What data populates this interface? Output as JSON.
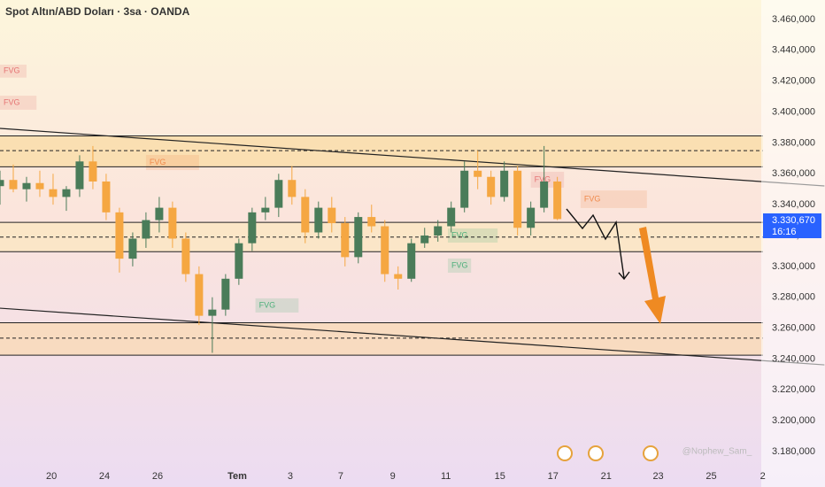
{
  "chart_data": {
    "type": "candlestick",
    "title": "Spot Altın/ABD Doları · 3sa · OANDA",
    "watermark": "@Nophew_Sam_",
    "last_price_label": "3.330,670",
    "countdown": "16:16",
    "x": [
      0,
      4,
      8,
      12,
      16,
      20,
      24,
      28,
      32,
      36,
      40,
      44,
      48,
      52,
      56,
      60,
      64,
      68,
      72,
      76,
      80,
      84,
      88,
      92,
      96,
      100,
      104,
      108,
      112,
      116,
      120,
      124,
      128,
      132,
      136,
      140,
      144,
      148,
      152,
      156,
      160,
      164,
      168
    ],
    "open": [
      3.352,
      3.356,
      3.35,
      3.354,
      3.35,
      3.345,
      3.35,
      3.368,
      3.355,
      3.335,
      3.305,
      3.318,
      3.33,
      3.338,
      3.318,
      3.295,
      3.268,
      3.272,
      3.292,
      3.315,
      3.335,
      3.338,
      3.356,
      3.345,
      3.322,
      3.338,
      3.328,
      3.306,
      3.332,
      3.326,
      3.295,
      3.292,
      3.315,
      3.32,
      3.326,
      3.338,
      3.362,
      3.358,
      3.345,
      3.362,
      3.325,
      3.338,
      3.355
    ],
    "high": [
      3.362,
      3.366,
      3.358,
      3.362,
      3.36,
      3.352,
      3.372,
      3.378,
      3.36,
      3.338,
      3.322,
      3.335,
      3.345,
      3.342,
      3.322,
      3.3,
      3.28,
      3.295,
      3.318,
      3.338,
      3.345,
      3.36,
      3.365,
      3.35,
      3.342,
      3.345,
      3.332,
      3.335,
      3.34,
      3.33,
      3.3,
      3.318,
      3.325,
      3.33,
      3.342,
      3.368,
      3.375,
      3.362,
      3.368,
      3.365,
      3.342,
      3.378,
      3.358
    ],
    "low": [
      3.34,
      3.348,
      3.342,
      3.345,
      3.34,
      3.336,
      3.345,
      3.35,
      3.33,
      3.296,
      3.3,
      3.312,
      3.322,
      3.312,
      3.29,
      3.262,
      3.244,
      3.268,
      3.288,
      3.31,
      3.33,
      3.332,
      3.34,
      3.315,
      3.318,
      3.322,
      3.3,
      3.302,
      3.322,
      3.29,
      3.285,
      3.29,
      3.312,
      3.316,
      3.322,
      3.335,
      3.35,
      3.34,
      3.342,
      3.32,
      3.32,
      3.335,
      3.33
    ],
    "close": [
      3.356,
      3.35,
      3.354,
      3.35,
      3.345,
      3.35,
      3.368,
      3.355,
      3.335,
      3.305,
      3.318,
      3.33,
      3.338,
      3.318,
      3.295,
      3.268,
      3.272,
      3.292,
      3.315,
      3.335,
      3.338,
      3.356,
      3.345,
      3.322,
      3.338,
      3.328,
      3.306,
      3.332,
      3.326,
      3.295,
      3.292,
      3.315,
      3.32,
      3.326,
      3.338,
      3.362,
      3.358,
      3.345,
      3.362,
      3.325,
      3.338,
      3.355,
      3.33067
    ],
    "up_color": "#f5a742",
    "down_color": "#f5a742",
    "up_body": "#4a7c59",
    "xlim": [
      0,
      230
    ],
    "ylim": [
      3.1714,
      3.4726
    ],
    "xticks": [
      {
        "value": 15.5,
        "label": "20"
      },
      {
        "value": 31.5,
        "label": "24"
      },
      {
        "value": 47.5,
        "label": "26"
      },
      {
        "value": 71.5,
        "label": "Tem"
      },
      {
        "value": 87.5,
        "label": "3"
      },
      {
        "value": 102.7,
        "label": "7"
      },
      {
        "value": 118.4,
        "label": "9"
      },
      {
        "value": 134.4,
        "label": "11"
      },
      {
        "value": 150.7,
        "label": "15"
      },
      {
        "value": 166.7,
        "label": "17"
      },
      {
        "value": 182.7,
        "label": "21"
      },
      {
        "value": 198.4,
        "label": "23"
      },
      {
        "value": 214.4,
        "label": "25"
      },
      {
        "value": 229.9,
        "label": "2"
      }
    ],
    "yticks": [
      {
        "value": 3.46,
        "label": "3.460,000"
      },
      {
        "value": 3.44,
        "label": "3.440,000"
      },
      {
        "value": 3.42,
        "label": "3.420,000"
      },
      {
        "value": 3.4,
        "label": "3.400,000"
      },
      {
        "value": 3.38,
        "label": "3.380,000"
      },
      {
        "value": 3.36,
        "label": "3.360,000"
      },
      {
        "value": 3.34,
        "label": "3.340,000"
      },
      {
        "value": 3.32,
        "label": "3.320,000"
      },
      {
        "value": 3.3,
        "label": "3.300,000"
      },
      {
        "value": 3.28,
        "label": "3.280,000"
      },
      {
        "value": 3.26,
        "label": "3.260,000"
      },
      {
        "value": 3.24,
        "label": "3.240,000"
      },
      {
        "value": 3.22,
        "label": "3.220,000"
      },
      {
        "value": 3.2,
        "label": "3.200,000"
      },
      {
        "value": 3.18,
        "label": "3.180,000"
      }
    ],
    "zones": [
      {
        "range": [
          3.3645,
          3.3845
        ],
        "color": "#f9dca8"
      },
      {
        "range": [
          3.3095,
          3.3285
        ],
        "color": "#fbe6c2"
      },
      {
        "range": [
          3.2425,
          3.2635
        ],
        "color": "#f9d9b6"
      }
    ],
    "levels": [
      {
        "value": 3.3845,
        "style": "solid"
      },
      {
        "value": 3.375,
        "style": "dashed"
      },
      {
        "value": 3.3645,
        "style": "solid"
      },
      {
        "value": 3.3285,
        "style": "solid"
      },
      {
        "value": 3.319,
        "style": "dashed"
      },
      {
        "value": 3.3095,
        "style": "solid"
      },
      {
        "value": 3.2635,
        "style": "solid"
      },
      {
        "value": 3.2535,
        "style": "dashed"
      },
      {
        "value": 3.2425,
        "style": "solid"
      }
    ],
    "trendlines": [
      {
        "x": [
          0,
          248.5
        ],
        "y": [
          3.3894,
          3.3521
        ]
      },
      {
        "x": [
          0,
          248.5
        ],
        "y": [
          3.2729,
          3.2362
        ]
      }
    ],
    "fvg_zones": [
      {
        "label": "FVG",
        "color": "#e57373",
        "x": [
          0,
          8
        ],
        "y": [
          3.4223,
          3.4307
        ]
      },
      {
        "label": "FVG",
        "color": "#e57373",
        "x": [
          0,
          11
        ],
        "y": [
          3.4015,
          3.4106
        ]
      },
      {
        "label": "FVG",
        "color": "#f08a4b",
        "x": [
          44,
          60
        ],
        "y": [
          3.3624,
          3.3722
        ]
      },
      {
        "label": "FVG",
        "color": "#e57373",
        "x": [
          160,
          170
        ],
        "y": [
          3.351,
          3.3613
        ]
      },
      {
        "label": "FVG",
        "color": "#f08a4b",
        "x": [
          175,
          195
        ],
        "y": [
          3.3378,
          3.3492
        ]
      },
      {
        "label": "FVG",
        "color": "#4caf7a",
        "x": [
          135,
          150
        ],
        "y": [
          3.3154,
          3.3246
        ]
      },
      {
        "label": "FVG",
        "color": "#4caf7a",
        "x": [
          135,
          142
        ],
        "y": [
          3.2959,
          3.3051
        ]
      },
      {
        "label": "FVG",
        "color": "#4caf7a",
        "x": [
          77,
          90
        ],
        "y": [
          3.2701,
          3.2793
        ]
      }
    ]
  }
}
